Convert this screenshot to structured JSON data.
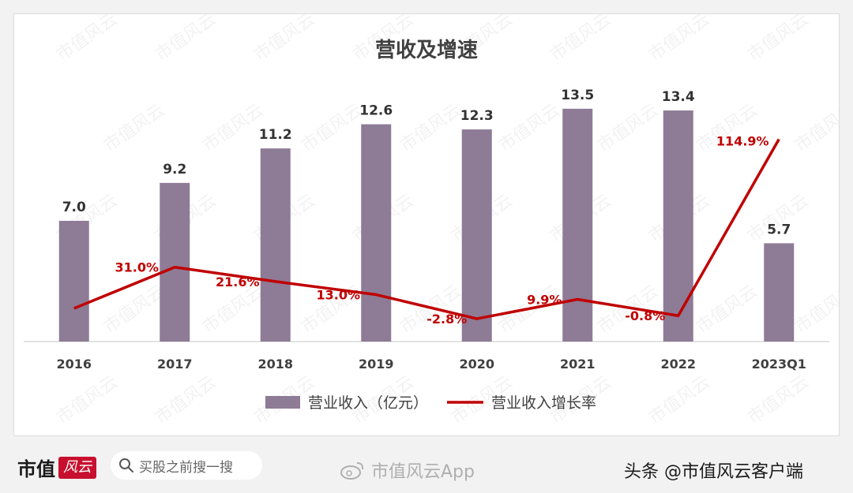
{
  "chart_data": {
    "type": "bar+line",
    "title": "营收及增速",
    "categories": [
      "2016",
      "2017",
      "2018",
      "2019",
      "2020",
      "2021",
      "2022",
      "2023Q1"
    ],
    "series": [
      {
        "name": "营业收入（亿元）",
        "type": "bar",
        "color": "#8e7b96",
        "values": [
          7.0,
          9.2,
          11.2,
          12.6,
          12.3,
          13.5,
          13.4,
          5.7
        ],
        "labels": [
          "7.0",
          "9.2",
          "11.2",
          "12.6",
          "12.3",
          "13.5",
          "13.4",
          "5.7"
        ]
      },
      {
        "name": "营业收入增长率",
        "type": "line",
        "color": "#c00000",
        "values": [
          null,
          31.0,
          21.6,
          13.0,
          -2.8,
          9.9,
          -0.8,
          114.9
        ],
        "labels": [
          "",
          "31.0%",
          "21.6%",
          "13.0%",
          "-2.8%",
          "9.9%",
          "-0.8%",
          "114.9%"
        ]
      }
    ],
    "legend_position": "bottom",
    "grid": false
  },
  "watermark_text": "市值风云",
  "footer": {
    "logo_text": "市值",
    "logo_mark": "风云",
    "search_placeholder": "买股之前搜一搜",
    "weibo_watermark": "市值风云App",
    "source_credit": "头条 @市值风云客户端"
  }
}
